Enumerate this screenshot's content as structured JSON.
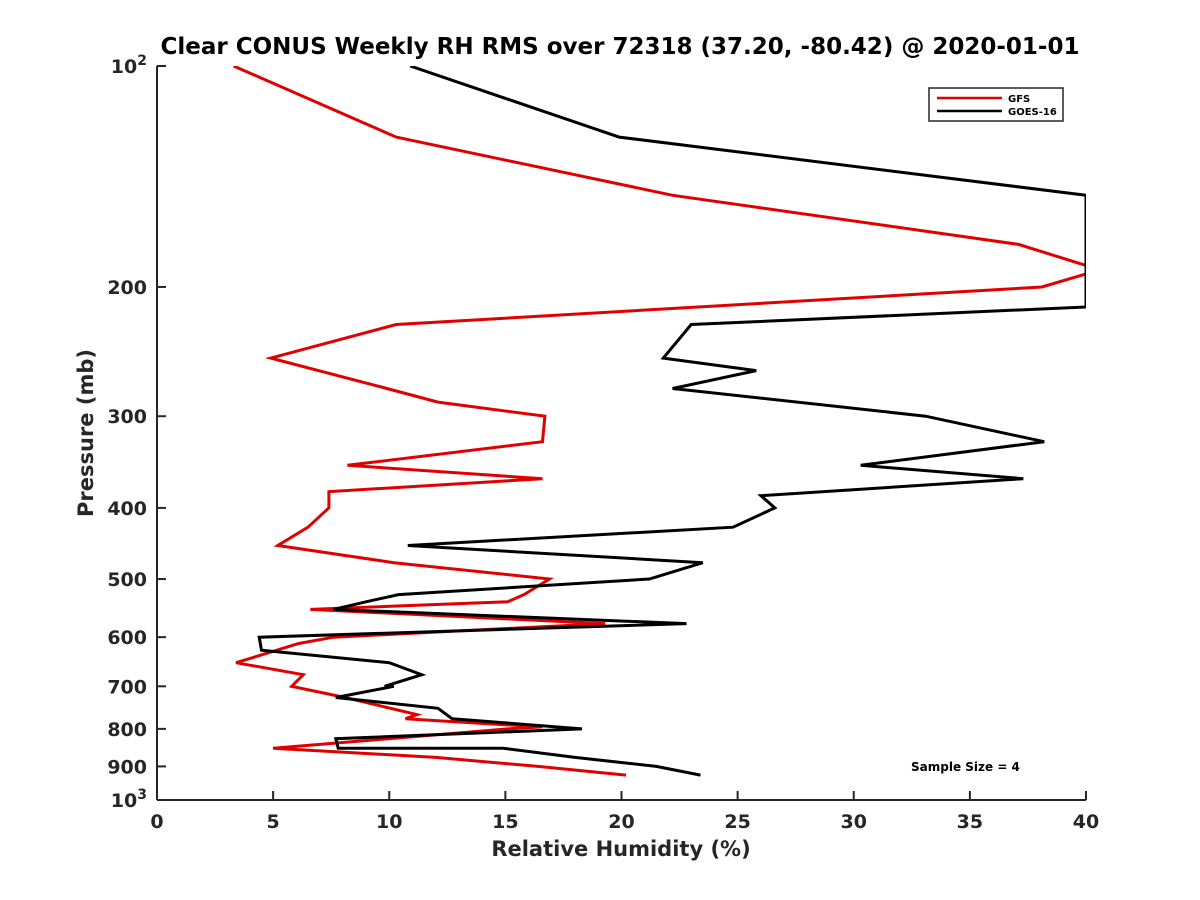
{
  "chart_data": {
    "type": "line",
    "title": "Clear CONUS Weekly RH RMS over 72318 (37.20, -80.42) @ 2020-01-01",
    "xlabel": "Relative Humidity (%)",
    "ylabel": "Pressure (mb)",
    "xlim": [
      0,
      40
    ],
    "ylim": [
      100,
      1000
    ],
    "yscale": "log",
    "y_reversed": true,
    "grid": false,
    "legend_position": "top-right",
    "x_ticks": [
      "0",
      "5",
      "10",
      "15",
      "20",
      "25",
      "30",
      "35",
      "40"
    ],
    "y_ticks": [
      {
        "value": 100,
        "base": "10",
        "exp": "2"
      },
      {
        "value": 200,
        "label": "200"
      },
      {
        "value": 300,
        "label": "300"
      },
      {
        "value": 400,
        "label": "400"
      },
      {
        "value": 500,
        "label": "500"
      },
      {
        "value": 600,
        "label": "600"
      },
      {
        "value": 700,
        "label": "700"
      },
      {
        "value": 800,
        "label": "800"
      },
      {
        "value": 900,
        "label": "900"
      },
      {
        "value": 1000,
        "base": "10",
        "exp": "3"
      }
    ],
    "series": [
      {
        "name": "GFS",
        "color": "#e00000",
        "points": [
          [
            3.3,
            100
          ],
          [
            10.3,
            125
          ],
          [
            22.2,
            150
          ],
          [
            37.1,
            175
          ],
          [
            40,
            187
          ],
          [
            40,
            192
          ],
          [
            38.1,
            200
          ],
          [
            10.3,
            225
          ],
          [
            4.9,
            250
          ],
          [
            9.9,
            275
          ],
          [
            12.1,
            287
          ],
          [
            16.7,
            300
          ],
          [
            16.6,
            325
          ],
          [
            8.2,
            350
          ],
          [
            16.6,
            365
          ],
          [
            7.4,
            380
          ],
          [
            7.4,
            400
          ],
          [
            6.5,
            425
          ],
          [
            5.2,
            450
          ],
          [
            10.2,
            475
          ],
          [
            16.9,
            500
          ],
          [
            15.8,
            525
          ],
          [
            15.1,
            537
          ],
          [
            6.6,
            550
          ],
          [
            19.3,
            575
          ],
          [
            7.6,
            600
          ],
          [
            6.1,
            612
          ],
          [
            3.4,
            650
          ],
          [
            6.3,
            675
          ],
          [
            5.8,
            700
          ],
          [
            8.1,
            725
          ],
          [
            11.2,
            765
          ],
          [
            10.7,
            775
          ],
          [
            12.1,
            780
          ],
          [
            16.6,
            795
          ],
          [
            15.1,
            800
          ],
          [
            5.0,
            850
          ],
          [
            12.0,
            875
          ],
          [
            16.4,
            900
          ],
          [
            20.2,
            925
          ]
        ]
      },
      {
        "name": "GOES-16",
        "color": "#000000",
        "points": [
          [
            10.9,
            100
          ],
          [
            19.9,
            125
          ],
          [
            40,
            150
          ],
          [
            40,
            162
          ],
          [
            40,
            213
          ],
          [
            23.0,
            225
          ],
          [
            21.8,
            250
          ],
          [
            25.8,
            260
          ],
          [
            22.2,
            275
          ],
          [
            33.1,
            300
          ],
          [
            38.2,
            325
          ],
          [
            30.3,
            350
          ],
          [
            37.3,
            365
          ],
          [
            26.0,
            385
          ],
          [
            26.6,
            400
          ],
          [
            24.8,
            425
          ],
          [
            10.8,
            450
          ],
          [
            23.5,
            475
          ],
          [
            21.2,
            500
          ],
          [
            10.4,
            525
          ],
          [
            9.0,
            537
          ],
          [
            7.6,
            550
          ],
          [
            22.8,
            575
          ],
          [
            4.4,
            600
          ],
          [
            4.5,
            625
          ],
          [
            10.0,
            650
          ],
          [
            11.4,
            675
          ],
          [
            9.8,
            700
          ],
          [
            10.2,
            700
          ],
          [
            7.7,
            725
          ],
          [
            12.1,
            750
          ],
          [
            12.7,
            775
          ],
          [
            18.3,
            800
          ],
          [
            7.7,
            825
          ],
          [
            7.8,
            850
          ],
          [
            14.9,
            850
          ],
          [
            18.0,
            875
          ],
          [
            21.5,
            900
          ],
          [
            23.4,
            925
          ]
        ]
      }
    ],
    "annotation": "Sample Size = 4"
  }
}
